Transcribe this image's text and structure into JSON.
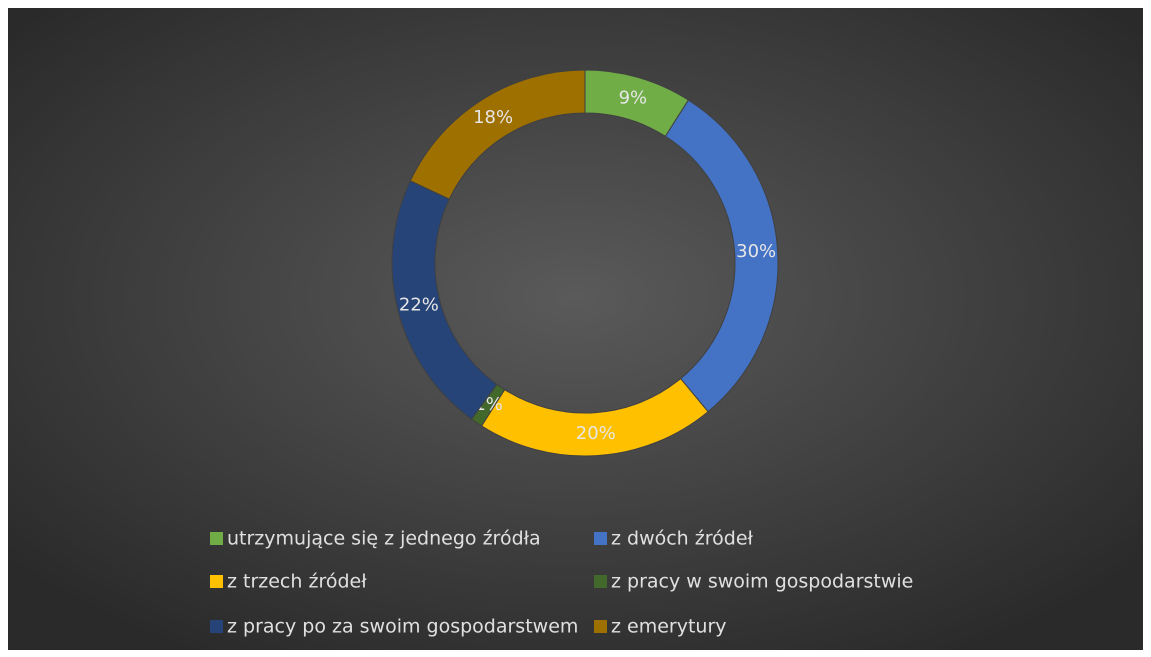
{
  "chart_data": {
    "type": "donut",
    "categories": [
      "utrzymujące się z jednego źródła",
      "z dwóch źródeł",
      "z trzech źródeł",
      "z pracy w swoim gospodarstwie",
      "z pracy po za swoim gospodarstwem",
      "z emerytury"
    ],
    "values": [
      9,
      30,
      20,
      1,
      22,
      18
    ],
    "value_labels": [
      "9%",
      "30%",
      "20%",
      "1%",
      "22%",
      "18%"
    ],
    "colors": [
      "#70ad47",
      "#4472c4",
      "#ffc000",
      "#43682b",
      "#264478",
      "#9e7000"
    ],
    "legend": "bottom"
  }
}
